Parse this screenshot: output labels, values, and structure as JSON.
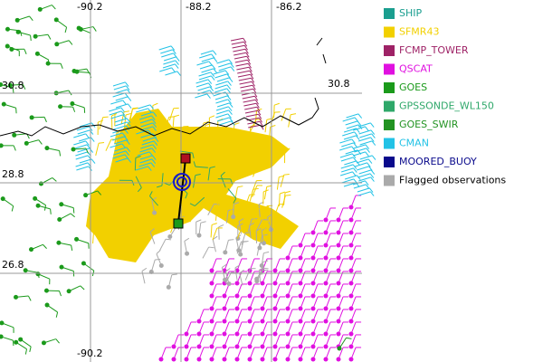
{
  "map": {
    "grid_labels": {
      "top": [
        "-90.2",
        "-88.2",
        "-86.2"
      ],
      "left": [
        "30.8",
        "28.8",
        "26.8"
      ],
      "right": [
        "30.8"
      ],
      "bottom": [
        "-90.2"
      ]
    },
    "legend": [
      {
        "label": "SHIP",
        "color": "#1a9e8f"
      },
      {
        "label": "SFMR43",
        "color": "#f2d000"
      },
      {
        "label": "FCMP_TOWER",
        "color": "#9e2266"
      },
      {
        "label": "QSCAT",
        "color": "#e010e0"
      },
      {
        "label": "GOES",
        "color": "#1b9a1b"
      },
      {
        "label": "GPSSONDE_WL150",
        "color": "#2fa86a"
      },
      {
        "label": "GOES_SWIR",
        "color": "#229322"
      },
      {
        "label": "CMAN",
        "color": "#22c2e6"
      },
      {
        "label": "MOORED_BUOY",
        "color": "#0a0a8c"
      },
      {
        "label": "Flagged observations",
        "color": "#aaaaaa"
      }
    ]
  }
}
